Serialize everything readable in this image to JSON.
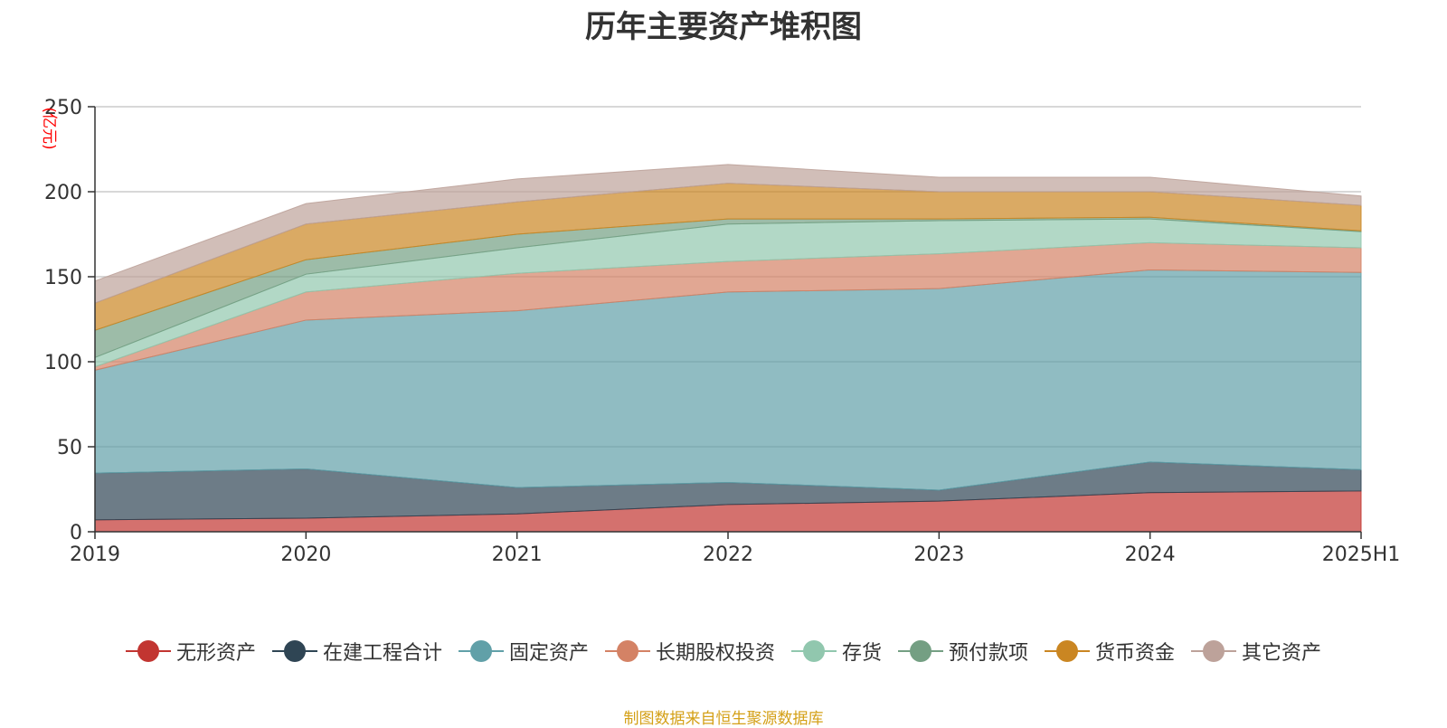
{
  "chart_data": {
    "type": "area",
    "title": "历年主要资产堆积图",
    "unit_label": "(亿元)",
    "stacked": true,
    "categories": [
      "2019",
      "2020",
      "2021",
      "2022",
      "2023",
      "2024",
      "2025H1"
    ],
    "ylim": [
      0,
      250
    ],
    "yticks": [
      0,
      50,
      100,
      150,
      200,
      250
    ],
    "grid": true,
    "legend_position": "bottom",
    "series": [
      {
        "name": "无形资产",
        "color": "#c23531",
        "values": [
          7,
          8,
          10.5,
          16,
          18,
          23,
          24
        ]
      },
      {
        "name": "在建工程合计",
        "color": "#2f4554",
        "values": [
          27.5,
          29,
          15.5,
          13,
          6.5,
          18,
          12.5
        ]
      },
      {
        "name": "固定资产",
        "color": "#61a0a8",
        "values": [
          60.5,
          87.5,
          104,
          112,
          118.5,
          113,
          116
        ]
      },
      {
        "name": "长期股权投资",
        "color": "#d48265",
        "values": [
          2,
          16.5,
          22,
          18,
          20.5,
          16,
          14.5
        ]
      },
      {
        "name": "存货",
        "color": "#91c7ae",
        "values": [
          5.5,
          10.5,
          15,
          22,
          19.5,
          14,
          9.5
        ]
      },
      {
        "name": "预付款项",
        "color": "#749f83",
        "values": [
          16,
          8.5,
          8,
          3,
          1,
          1,
          0.5
        ]
      },
      {
        "name": "货币资金",
        "color": "#ca8622",
        "values": [
          16,
          21,
          19,
          21,
          16,
          15,
          15
        ]
      },
      {
        "name": "其它资产",
        "color": "#bda29a",
        "values": [
          13,
          12,
          13.5,
          11,
          8.5,
          8.5,
          5.5
        ]
      }
    ]
  },
  "source_note": "制图数据来自恒生聚源数据库"
}
